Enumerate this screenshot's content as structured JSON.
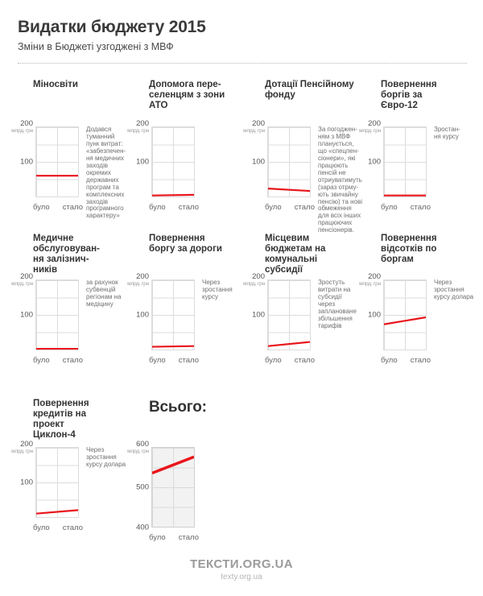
{
  "header": {
    "title": "Видатки бюджету 2015",
    "subtitle": "Зміни в Бюджеті узгоджені з МВФ"
  },
  "axis_small": {
    "top": "200",
    "mid": "100",
    "unit": "млрд. грн"
  },
  "axis_total": {
    "top": "600",
    "mid": "500",
    "bottom": "400",
    "unit": "млрд. грн"
  },
  "x_labels": {
    "left": "було",
    "right": "стало"
  },
  "footer": {
    "logo": "ТЕКСТИ.ORG.UA",
    "url": "texty.org.ua"
  },
  "colors": {
    "line": "#e9151b",
    "grid": "#dcdcdc",
    "total_bg": "#f2f2f2"
  },
  "chart_data": {
    "type": "line",
    "x_categories": [
      "було",
      "стало"
    ],
    "unit": "млрд грн",
    "charts": [
      {
        "title": "Міносвіти",
        "values": [
          60,
          60
        ],
        "ylim": [
          0,
          200
        ],
        "yticks": [
          100,
          200
        ],
        "note": "Додався\nтуманний\nпунк витрат:\n«забезпечен-\nня медичних\nзаходів\nокремих\nдержавних\nпрограм та\nкомплексних\nзаходів\nпрограмного\nхарактеру»"
      },
      {
        "title": "Допомога пере-\nселенцям з зони\nАТО",
        "values": [
          3,
          5
        ],
        "ylim": [
          0,
          200
        ],
        "yticks": [
          100,
          200
        ],
        "note": ""
      },
      {
        "title": "Дотації Пенсійному\nфонду",
        "values": [
          23,
          16
        ],
        "ylim": [
          0,
          200
        ],
        "yticks": [
          100,
          200
        ],
        "note": "За погоджен-\nням з МВФ\nпланується,\nщо «спецпен-\nсіонери», які\nпрацюють\nпенсій не\nотриуватимуть\n(зараз отрму-\nють звичайну\nпенсію) та нові\nобмеження\nдля всіх інших\nпрацюючих\nпенсіонерів."
      },
      {
        "title": "Повернення\nборгів за\nЄвро-12",
        "values": [
          3,
          3
        ],
        "ylim": [
          0,
          200
        ],
        "yticks": [
          100,
          200
        ],
        "note": "Зростан-\nня курсу"
      },
      {
        "title": "Медичне\nобслуговуван-\nня залізнич-\nників",
        "values": [
          2,
          2
        ],
        "ylim": [
          0,
          200
        ],
        "yticks": [
          100,
          200
        ],
        "note": "за рахунок\nсубвенцій\nрегіонам на\nмедіцину"
      },
      {
        "title": "Повернення\nборгу за дороги",
        "values": [
          8,
          10
        ],
        "ylim": [
          0,
          200
        ],
        "yticks": [
          100,
          200
        ],
        "note": "Через\nзростання\nкурсу"
      },
      {
        "title": "Місцевим\nбюджетам на\nкомунальні\nсубсидії",
        "values": [
          10,
          22
        ],
        "ylim": [
          0,
          200
        ],
        "yticks": [
          100,
          200
        ],
        "note": "Зростуть\nвитрати на\nсубсидії\nчерез\nзаплановане\nзбільшення\nтарифів"
      },
      {
        "title": "Повернення\nвідсотків по\nборгам",
        "values": [
          73,
          93
        ],
        "ylim": [
          0,
          200
        ],
        "yticks": [
          100,
          200
        ],
        "note": "Через\nзростання\nкурсу долара"
      },
      {
        "title": "Повернення\nкредитів на\nпроект\nЦиклон-4",
        "values": [
          10,
          20
        ],
        "ylim": [
          0,
          200
        ],
        "yticks": [
          100,
          200
        ],
        "note": "Через\nзростання\nкурсу долара"
      }
    ],
    "total": {
      "title": "Всього:",
      "values": [
        536,
        577
      ],
      "ylim": [
        400,
        600
      ],
      "yticks": [
        400,
        500,
        600
      ]
    }
  }
}
